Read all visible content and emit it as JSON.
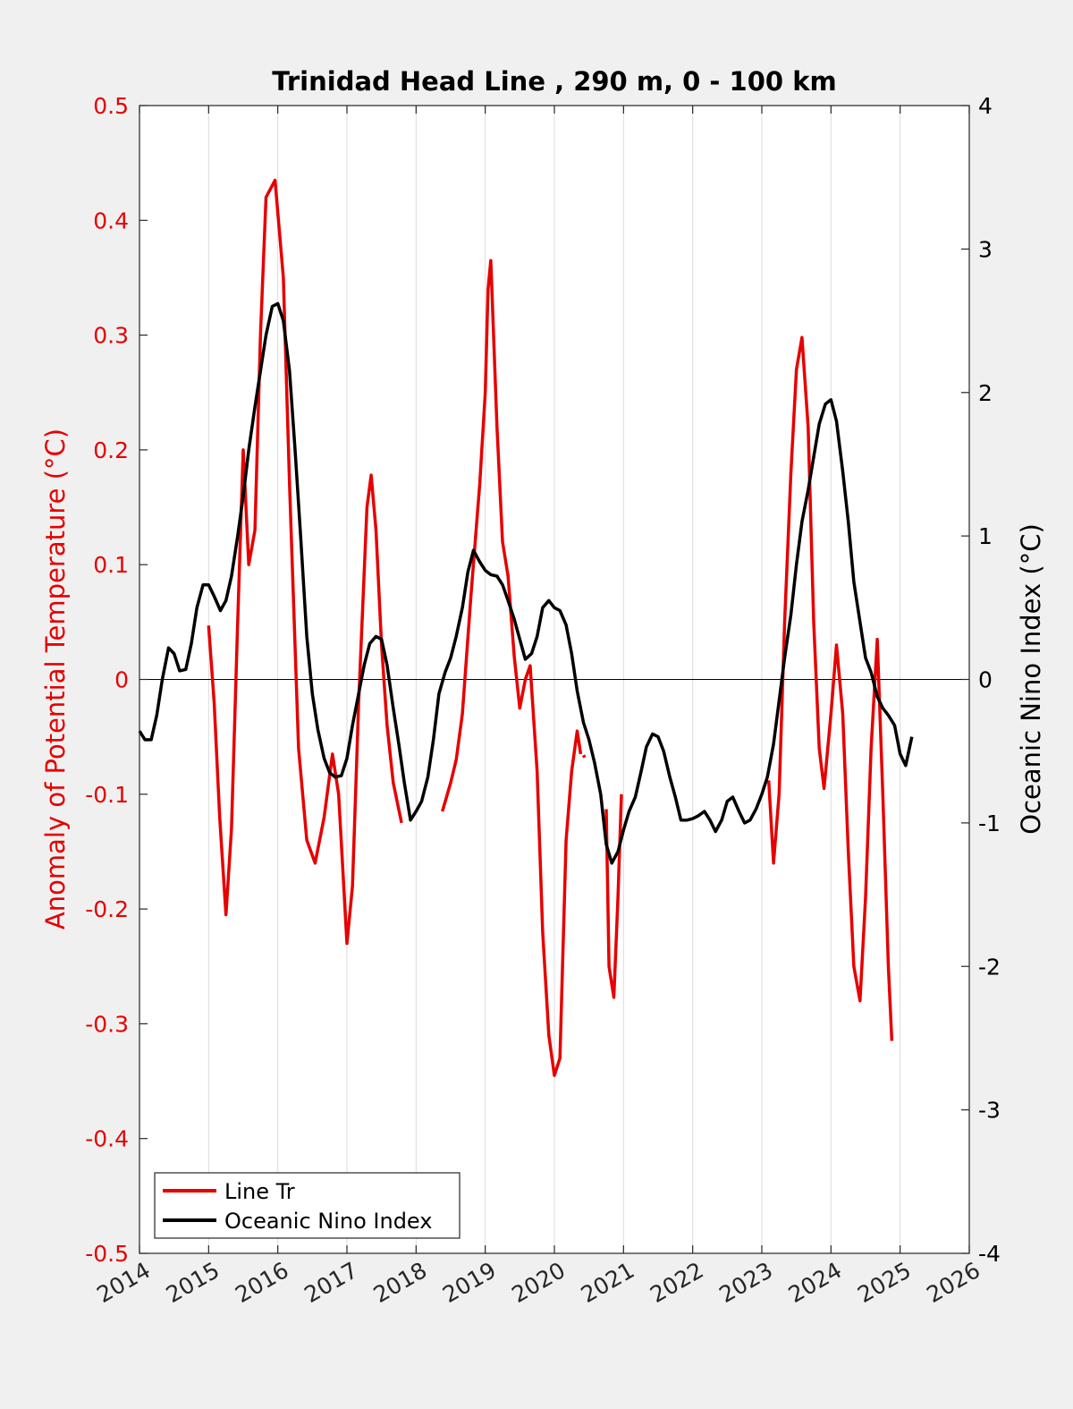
{
  "chart_data": {
    "type": "line",
    "title": "Trinidad Head Line , 290 m, 0 - 100 km",
    "xlabel": "",
    "ylabel_left": "Anomaly of Potential Temperature (°C)",
    "ylabel_right": "Oceanic Nino Index (°C)",
    "xlim": [
      2014,
      2026
    ],
    "ylim_left": [
      -0.5,
      0.5
    ],
    "ylim_right": [
      -4,
      4
    ],
    "x_ticks": [
      "2014",
      "2015",
      "2016",
      "2017",
      "2018",
      "2019",
      "2020",
      "2021",
      "2022",
      "2023",
      "2024",
      "2025",
      "2026"
    ],
    "y_left_ticks": [
      "0.5",
      "0.4",
      "0.3",
      "0.2",
      "0.1",
      "0",
      "-0.1",
      "-0.2",
      "-0.3",
      "-0.4",
      "-0.5"
    ],
    "y_right_ticks": [
      "4",
      "3",
      "2",
      "1",
      "0",
      "-1",
      "-2",
      "-3",
      "-4"
    ],
    "grid": "vertical",
    "legend_position": "bottom-left",
    "colors": {
      "line_tr": "#e60000",
      "oni": "#000000",
      "zero_line": "#000000"
    },
    "series": [
      {
        "name": "Line Tr",
        "axis": "left",
        "segments": [
          [
            [
              2015.0,
              0.047
            ],
            [
              2015.08,
              -0.02
            ],
            [
              2015.16,
              -0.12
            ],
            [
              2015.25,
              -0.205
            ],
            [
              2015.33,
              -0.13
            ],
            [
              2015.42,
              0.05
            ],
            [
              2015.5,
              0.2
            ],
            [
              2015.58,
              0.1
            ],
            [
              2015.67,
              0.13
            ],
            [
              2015.75,
              0.3
            ],
            [
              2015.83,
              0.42
            ],
            [
              2015.96,
              0.435
            ],
            [
              2016.08,
              0.35
            ],
            [
              2016.17,
              0.17
            ],
            [
              2016.3,
              -0.06
            ],
            [
              2016.42,
              -0.14
            ],
            [
              2016.54,
              -0.16
            ],
            [
              2016.67,
              -0.12
            ],
            [
              2016.79,
              -0.065
            ],
            [
              2016.88,
              -0.1
            ],
            [
              2017.0,
              -0.23
            ],
            [
              2017.08,
              -0.18
            ],
            [
              2017.17,
              -0.02
            ],
            [
              2017.29,
              0.15
            ],
            [
              2017.35,
              0.178
            ],
            [
              2017.42,
              0.13
            ],
            [
              2017.5,
              0.03
            ],
            [
              2017.58,
              -0.04
            ],
            [
              2017.67,
              -0.09
            ],
            [
              2017.79,
              -0.125
            ]
          ],
          [
            [
              2018.38,
              -0.115
            ],
            [
              2018.5,
              -0.09
            ],
            [
              2018.58,
              -0.07
            ],
            [
              2018.67,
              -0.03
            ],
            [
              2018.79,
              0.07
            ],
            [
              2018.92,
              0.17
            ],
            [
              2019.0,
              0.25
            ],
            [
              2019.04,
              0.34
            ],
            [
              2019.08,
              0.365
            ],
            [
              2019.17,
              0.22
            ],
            [
              2019.25,
              0.12
            ],
            [
              2019.33,
              0.09
            ],
            [
              2019.42,
              0.02
            ],
            [
              2019.5,
              -0.025
            ],
            [
              2019.58,
              0.0
            ],
            [
              2019.65,
              0.012
            ],
            [
              2019.75,
              -0.08
            ],
            [
              2019.83,
              -0.22
            ],
            [
              2019.92,
              -0.31
            ],
            [
              2020.0,
              -0.345
            ],
            [
              2020.08,
              -0.33
            ],
            [
              2020.17,
              -0.14
            ],
            [
              2020.25,
              -0.08
            ],
            [
              2020.33,
              -0.045
            ],
            [
              2020.38,
              -0.065
            ]
          ],
          [
            [
              2020.42,
              -0.066
            ],
            [
              2020.44,
              -0.068
            ]
          ],
          [
            [
              2020.75,
              -0.113
            ],
            [
              2020.79,
              -0.25
            ],
            [
              2020.86,
              -0.277
            ],
            [
              2020.92,
              -0.19
            ],
            [
              2020.97,
              -0.1
            ]
          ],
          [
            [
              2023.1,
              -0.088
            ],
            [
              2023.17,
              -0.16
            ],
            [
              2023.25,
              -0.1
            ],
            [
              2023.33,
              0.05
            ],
            [
              2023.42,
              0.18
            ],
            [
              2023.5,
              0.27
            ],
            [
              2023.58,
              0.298
            ],
            [
              2023.67,
              0.22
            ],
            [
              2023.75,
              0.05
            ],
            [
              2023.83,
              -0.06
            ],
            [
              2023.9,
              -0.095
            ],
            [
              2024.0,
              -0.03
            ],
            [
              2024.08,
              0.03
            ],
            [
              2024.17,
              -0.03
            ],
            [
              2024.25,
              -0.15
            ],
            [
              2024.33,
              -0.25
            ],
            [
              2024.42,
              -0.28
            ],
            [
              2024.5,
              -0.19
            ],
            [
              2024.58,
              -0.06
            ],
            [
              2024.67,
              0.035
            ],
            [
              2024.75,
              -0.1
            ],
            [
              2024.83,
              -0.25
            ],
            [
              2024.88,
              -0.315
            ]
          ]
        ]
      },
      {
        "name": "Oceanic Nino Index",
        "axis": "right",
        "segments": [
          [
            [
              2014.0,
              -0.36
            ],
            [
              2014.08,
              -0.42
            ],
            [
              2014.17,
              -0.42
            ],
            [
              2014.25,
              -0.25
            ],
            [
              2014.33,
              0.0
            ],
            [
              2014.42,
              0.22
            ],
            [
              2014.5,
              0.18
            ],
            [
              2014.58,
              0.06
            ],
            [
              2014.67,
              0.07
            ],
            [
              2014.75,
              0.25
            ],
            [
              2014.83,
              0.5
            ],
            [
              2014.92,
              0.66
            ],
            [
              2015.0,
              0.66
            ],
            [
              2015.08,
              0.58
            ],
            [
              2015.17,
              0.48
            ],
            [
              2015.25,
              0.55
            ],
            [
              2015.33,
              0.72
            ],
            [
              2015.42,
              1.0
            ],
            [
              2015.5,
              1.28
            ],
            [
              2015.58,
              1.6
            ],
            [
              2015.67,
              1.9
            ],
            [
              2015.75,
              2.15
            ],
            [
              2015.83,
              2.4
            ],
            [
              2015.92,
              2.6
            ],
            [
              2016.0,
              2.62
            ],
            [
              2016.08,
              2.5
            ],
            [
              2016.17,
              2.15
            ],
            [
              2016.25,
              1.6
            ],
            [
              2016.33,
              1.0
            ],
            [
              2016.42,
              0.3
            ],
            [
              2016.5,
              -0.1
            ],
            [
              2016.58,
              -0.35
            ],
            [
              2016.67,
              -0.55
            ],
            [
              2016.75,
              -0.65
            ],
            [
              2016.83,
              -0.68
            ],
            [
              2016.92,
              -0.67
            ],
            [
              2017.0,
              -0.55
            ],
            [
              2017.08,
              -0.32
            ],
            [
              2017.17,
              -0.1
            ],
            [
              2017.25,
              0.1
            ],
            [
              2017.33,
              0.25
            ],
            [
              2017.42,
              0.3
            ],
            [
              2017.5,
              0.28
            ],
            [
              2017.58,
              0.1
            ],
            [
              2017.67,
              -0.2
            ],
            [
              2017.75,
              -0.45
            ],
            [
              2017.83,
              -0.72
            ],
            [
              2017.92,
              -0.98
            ],
            [
              2018.0,
              -0.92
            ],
            [
              2018.08,
              -0.85
            ],
            [
              2018.17,
              -0.68
            ],
            [
              2018.25,
              -0.42
            ],
            [
              2018.33,
              -0.1
            ],
            [
              2018.42,
              0.05
            ],
            [
              2018.5,
              0.15
            ],
            [
              2018.58,
              0.3
            ],
            [
              2018.67,
              0.5
            ],
            [
              2018.75,
              0.75
            ],
            [
              2018.83,
              0.9
            ],
            [
              2018.92,
              0.82
            ],
            [
              2019.0,
              0.76
            ],
            [
              2019.08,
              0.73
            ],
            [
              2019.17,
              0.72
            ],
            [
              2019.25,
              0.66
            ],
            [
              2019.33,
              0.55
            ],
            [
              2019.42,
              0.42
            ],
            [
              2019.5,
              0.28
            ],
            [
              2019.58,
              0.14
            ],
            [
              2019.67,
              0.18
            ],
            [
              2019.75,
              0.3
            ],
            [
              2019.83,
              0.5
            ],
            [
              2019.92,
              0.55
            ],
            [
              2020.0,
              0.5
            ],
            [
              2020.08,
              0.48
            ],
            [
              2020.17,
              0.38
            ],
            [
              2020.25,
              0.18
            ],
            [
              2020.33,
              -0.08
            ],
            [
              2020.42,
              -0.3
            ],
            [
              2020.5,
              -0.42
            ],
            [
              2020.58,
              -0.58
            ],
            [
              2020.67,
              -0.8
            ],
            [
              2020.75,
              -1.15
            ],
            [
              2020.83,
              -1.28
            ],
            [
              2020.92,
              -1.2
            ],
            [
              2021.0,
              -1.05
            ],
            [
              2021.08,
              -0.92
            ],
            [
              2021.17,
              -0.82
            ],
            [
              2021.25,
              -0.65
            ],
            [
              2021.33,
              -0.47
            ],
            [
              2021.42,
              -0.38
            ],
            [
              2021.5,
              -0.4
            ],
            [
              2021.58,
              -0.5
            ],
            [
              2021.67,
              -0.68
            ],
            [
              2021.75,
              -0.82
            ],
            [
              2021.83,
              -0.98
            ],
            [
              2021.92,
              -0.98
            ],
            [
              2022.0,
              -0.97
            ],
            [
              2022.08,
              -0.95
            ],
            [
              2022.17,
              -0.92
            ],
            [
              2022.25,
              -0.98
            ],
            [
              2022.33,
              -1.06
            ],
            [
              2022.42,
              -0.98
            ],
            [
              2022.5,
              -0.85
            ],
            [
              2022.58,
              -0.82
            ],
            [
              2022.67,
              -0.92
            ],
            [
              2022.75,
              -1.0
            ],
            [
              2022.83,
              -0.98
            ],
            [
              2022.92,
              -0.9
            ],
            [
              2023.0,
              -0.8
            ],
            [
              2023.08,
              -0.68
            ],
            [
              2023.17,
              -0.45
            ],
            [
              2023.25,
              -0.15
            ],
            [
              2023.33,
              0.15
            ],
            [
              2023.42,
              0.45
            ],
            [
              2023.5,
              0.8
            ],
            [
              2023.58,
              1.1
            ],
            [
              2023.67,
              1.32
            ],
            [
              2023.75,
              1.55
            ],
            [
              2023.83,
              1.78
            ],
            [
              2023.92,
              1.92
            ],
            [
              2024.0,
              1.95
            ],
            [
              2024.08,
              1.8
            ],
            [
              2024.17,
              1.45
            ],
            [
              2024.25,
              1.1
            ],
            [
              2024.33,
              0.68
            ],
            [
              2024.42,
              0.4
            ],
            [
              2024.5,
              0.15
            ],
            [
              2024.58,
              0.05
            ],
            [
              2024.67,
              -0.12
            ],
            [
              2024.75,
              -0.2
            ],
            [
              2024.83,
              -0.25
            ],
            [
              2024.92,
              -0.32
            ],
            [
              2025.0,
              -0.52
            ],
            [
              2025.08,
              -0.6
            ],
            [
              2025.17,
              -0.4
            ]
          ]
        ]
      }
    ]
  }
}
